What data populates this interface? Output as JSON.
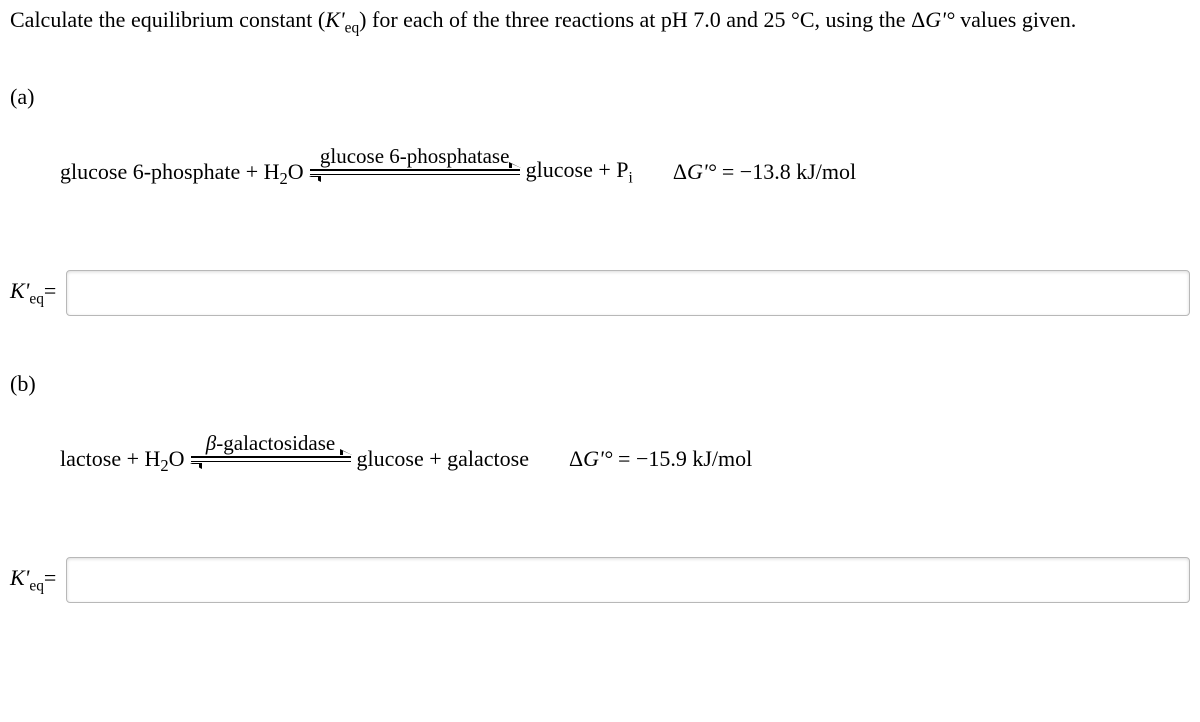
{
  "prompt": {
    "pre": "Calculate the equilibrium constant (",
    "kprime": "K'",
    "eq": "eq",
    "mid1": ") for each of the three reactions at pH 7.0 and 25 °C, using the Δ",
    "gprime": "G'°",
    "mid2": " values given."
  },
  "parts": {
    "a": {
      "label": "(a)",
      "reactants_pre": "glucose 6-phosphate + H",
      "reactants_sub": "2",
      "reactants_post": "O",
      "enzyme": "glucose 6-phosphatase",
      "products_pre": "glucose + P",
      "products_sub": "i",
      "dg_label_pre": "Δ",
      "dg_label_g": "G'°",
      "dg_eq": " = ",
      "dg_val": "−13.8 kJ/mol",
      "answer_k": "K'",
      "answer_eq": "eq",
      "answer_post": "="
    },
    "b": {
      "label": "(b)",
      "reactants_pre": "lactose + H",
      "reactants_sub": "2",
      "reactants_post": "O",
      "enzyme": "β",
      "enzyme_post": "-galactosidase",
      "products": "glucose + galactose",
      "dg_label_pre": "Δ",
      "dg_label_g": "G'°",
      "dg_eq": " = ",
      "dg_val": "−15.9 kJ/mol",
      "answer_k": "K'",
      "answer_eq": "eq",
      "answer_post": "="
    }
  },
  "style": {
    "body_font_size": 22,
    "input_border_color": "#b8b8b8",
    "background": "#ffffff",
    "text_color": "#000000"
  }
}
